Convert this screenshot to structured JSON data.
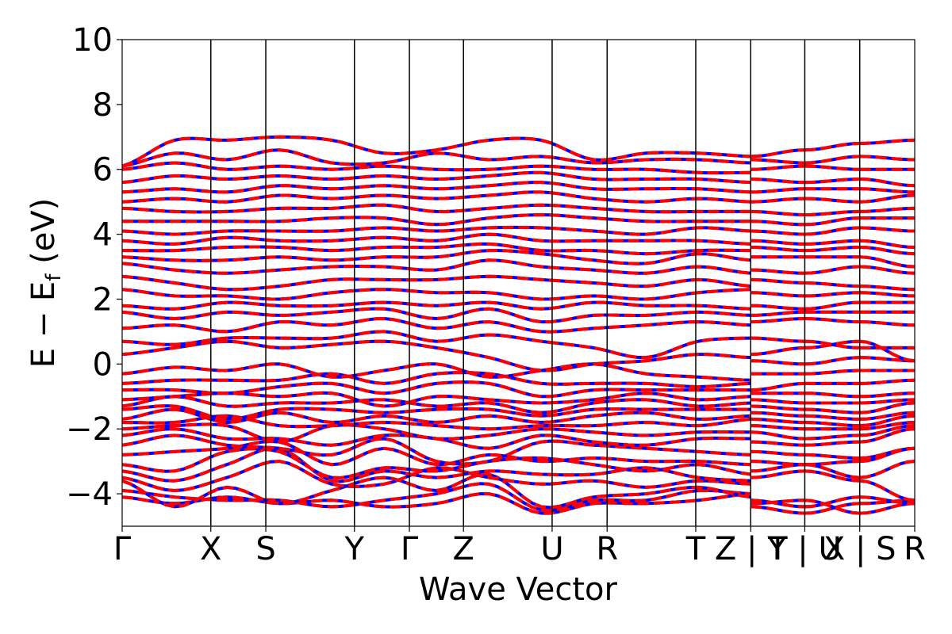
{
  "chart_data": {
    "type": "line",
    "title": "",
    "xlabel": "Wave Vector",
    "ylabel_parts": {
      "main": "E − E",
      "sub": "f",
      "unit": " (eV)"
    },
    "ylim": [
      -5,
      10
    ],
    "y_ticks": [
      -4,
      -2,
      0,
      2,
      4,
      6,
      8,
      10
    ],
    "y_tick_labels": [
      "−4",
      "−2",
      "0",
      "2",
      "4",
      "6",
      "8",
      "10"
    ],
    "k_ticks": [
      {
        "pos": 0.0,
        "label": "Γ"
      },
      {
        "pos": 1.0,
        "label": "X"
      },
      {
        "pos": 1.62,
        "label": "S"
      },
      {
        "pos": 2.62,
        "label": "Y"
      },
      {
        "pos": 3.24,
        "label": "Γ"
      },
      {
        "pos": 3.85,
        "label": "Z"
      },
      {
        "pos": 4.85,
        "label": "U"
      },
      {
        "pos": 5.47,
        "label": "R"
      },
      {
        "pos": 6.47,
        "label": "T"
      },
      {
        "pos": 7.09,
        "label": "Z | Y"
      },
      {
        "pos": 7.7,
        "label": "T | U"
      },
      {
        "pos": 8.32,
        "label": "X | S"
      },
      {
        "pos": 8.94,
        "label": "R"
      }
    ],
    "xlim": [
      0,
      8.94
    ],
    "segments": [
      {
        "start": 0.0,
        "end": 7.09,
        "samples": 72
      },
      {
        "start": 7.09,
        "end": 7.7,
        "samples": 8
      },
      {
        "start": 7.7,
        "end": 8.32,
        "samples": 8
      },
      {
        "start": 8.32,
        "end": 8.94,
        "samples": 8
      }
    ],
    "series": [
      {
        "color": "#0000ff",
        "style": "solid"
      },
      {
        "color": "#ff0000",
        "style": "dashed"
      }
    ],
    "bands": [
      {
        "s": [
          -4.1,
          -4.3,
          -4.1,
          -4.3,
          -4.2,
          -4.4,
          -4.3,
          -4.0,
          -4.6,
          -4.3,
          -4.3,
          -4.2,
          -4.0
        ],
        "b": [
          -4.4,
          -4.6,
          -4.3,
          -4.2
        ]
      },
      {
        "s": [
          -3.9,
          -4.1,
          -4.2,
          -4.2,
          -4.4,
          -4.2,
          -4.0,
          -3.7,
          -4.5,
          -4.2,
          -4.2,
          -3.9,
          -4.0
        ],
        "b": [
          -4.3,
          -4.2,
          -4.6,
          -4.3
        ]
      },
      {
        "s": [
          -3.6,
          -4.4,
          -3.8,
          -4.3,
          -3.9,
          -3.5,
          -3.9,
          -3.4,
          -4.4,
          -4.1,
          -4.0,
          -3.8,
          -4.1
        ],
        "b": [
          -4.2,
          -4.4,
          -4.1,
          -4.3
        ]
      },
      {
        "s": [
          -3.5,
          -3.9,
          -3.5,
          -3.0,
          -3.7,
          -3.7,
          -3.2,
          -3.5,
          -3.7,
          -3.6,
          -3.8,
          -3.6,
          -3.7
        ],
        "b": [
          -3.5,
          -3.3,
          -3.6,
          -4.2
        ]
      },
      {
        "s": [
          -3.3,
          -3.6,
          -3.1,
          -2.6,
          -3.6,
          -3.3,
          -3.5,
          -3.3,
          -3.4,
          -3.4,
          -3.2,
          -3.5,
          -3.6
        ],
        "b": [
          -3.3,
          -3.1,
          -3.5,
          -3.0
        ]
      },
      {
        "s": [
          -3.1,
          -3.3,
          -2.7,
          -2.7,
          -3.5,
          -3.2,
          -3.3,
          -3.0,
          -2.9,
          -3.1,
          -3.3,
          -3.1,
          -3.4
        ],
        "b": [
          -3.0,
          -3.1,
          -3.0,
          -2.6
        ]
      },
      {
        "s": [
          -2.8,
          -2.7,
          -2.6,
          -2.4,
          -3.1,
          -2.6,
          -3.1,
          -2.8,
          -3.0,
          -2.9,
          -3.0,
          -3.0,
          -3.1
        ],
        "b": [
          -2.7,
          -2.8,
          -2.9,
          -2.6
        ]
      },
      {
        "s": [
          -2.5,
          -2.2,
          -2.5,
          -2.6,
          -2.8,
          -2.3,
          -3.0,
          -3.0,
          -2.4,
          -2.5,
          -2.6,
          -2.7,
          -2.8
        ],
        "b": [
          -2.4,
          -2.5,
          -2.4,
          -2.0
        ]
      },
      {
        "s": [
          -2.2,
          -2.0,
          -2.3,
          -2.3,
          -2.5,
          -2.2,
          -2.3,
          -2.6,
          -2.2,
          -2.4,
          -2.5,
          -2.3,
          -2.3
        ],
        "b": [
          -2.1,
          -2.3,
          -2.2,
          -1.9
        ]
      },
      {
        "s": [
          -2.0,
          -1.9,
          -1.9,
          -2.4,
          -1.9,
          -2.0,
          -2.3,
          -2.2,
          -2.0,
          -2.1,
          -2.2,
          -2.1,
          -2.1
        ],
        "b": [
          -1.9,
          -2.0,
          -2.0,
          -1.8
        ]
      },
      {
        "s": [
          -1.8,
          -1.8,
          -1.6,
          -1.9,
          -1.9,
          -1.8,
          -1.9,
          -2.0,
          -1.9,
          -1.9,
          -1.8,
          -1.9,
          -1.7
        ],
        "b": [
          -1.7,
          -1.8,
          -1.9,
          -1.6
        ]
      },
      {
        "s": [
          -1.7,
          -1.4,
          -1.8,
          -1.5,
          -1.8,
          -1.6,
          -1.8,
          -1.6,
          -1.8,
          -1.6,
          -1.5,
          -1.7,
          -1.6
        ],
        "b": [
          -1.5,
          -1.6,
          -1.7,
          -1.5
        ]
      },
      {
        "s": [
          -1.4,
          -1.3,
          -1.7,
          -1.4,
          -1.4,
          -1.5,
          -1.4,
          -1.4,
          -1.6,
          -1.4,
          -1.4,
          -1.4,
          -1.4
        ],
        "b": [
          -1.3,
          -1.4,
          -1.5,
          -1.2
        ]
      },
      {
        "s": [
          -1.3,
          -1.0,
          -1.3,
          -1.2,
          -1.2,
          -1.1,
          -1.3,
          -1.2,
          -1.5,
          -1.2,
          -1.1,
          -1.3,
          -1.2
        ],
        "b": [
          -1.1,
          -1.2,
          -1.2,
          -1.1
        ]
      },
      {
        "s": [
          -1.1,
          -1.0,
          -0.9,
          -1.0,
          -0.9,
          -1.3,
          -1.0,
          -1.1,
          -1.2,
          -1.1,
          -0.9,
          -1.1,
          -1.0
        ],
        "b": [
          -0.9,
          -0.9,
          -1.0,
          -0.9
        ]
      },
      {
        "s": [
          -0.8,
          -0.8,
          -0.9,
          -0.7,
          -0.6,
          -0.9,
          -0.6,
          -0.6,
          -1.0,
          -0.8,
          -0.8,
          -0.8,
          -0.8
        ],
        "b": [
          -0.8,
          -0.6,
          -0.6,
          -0.5
        ]
      },
      {
        "s": [
          -0.6,
          -0.5,
          -0.5,
          -0.5,
          -0.3,
          -0.6,
          -0.3,
          -0.3,
          -0.6,
          -0.6,
          -0.6,
          -0.7,
          -0.6
        ],
        "b": [
          -0.3,
          -0.3,
          -0.2,
          -0.2
        ]
      },
      {
        "s": [
          -0.3,
          -0.1,
          -0.2,
          0.0,
          -0.4,
          -0.2,
          0.0,
          -0.4,
          -0.2,
          0.0,
          -0.3,
          -0.4,
          -0.5
        ],
        "b": [
          0.1,
          0.0,
          0.2,
          0.1
        ]
      },
      {
        "s": [
          0.3,
          0.5,
          0.7,
          0.5,
          0.6,
          0.7,
          0.5,
          0.2,
          -0.2,
          0.0,
          0.1,
          0.3,
          0.2
        ],
        "b": [
          0.3,
          0.5,
          0.7,
          0.1
        ]
      },
      {
        "s": [
          0.7,
          0.6,
          0.8,
          0.8,
          0.8,
          1.0,
          0.7,
          0.9,
          0.7,
          0.5,
          0.2,
          0.7,
          0.8
        ],
        "b": [
          0.8,
          0.7,
          0.5,
          0.5
        ]
      },
      {
        "s": [
          1.1,
          1.2,
          1.0,
          1.3,
          1.2,
          1.4,
          1.1,
          1.3,
          1.0,
          1.1,
          1.2,
          1.3,
          1.2
        ],
        "b": [
          1.3,
          1.4,
          1.3,
          1.2
        ]
      },
      {
        "s": [
          1.6,
          1.4,
          1.6,
          1.5,
          1.6,
          1.7,
          1.4,
          1.7,
          1.3,
          1.5,
          1.5,
          1.6,
          1.5
        ],
        "b": [
          1.5,
          1.6,
          1.6,
          1.6
        ]
      },
      {
        "s": [
          1.8,
          1.7,
          1.9,
          1.8,
          1.8,
          1.9,
          1.8,
          1.9,
          1.7,
          1.9,
          1.8,
          1.8,
          1.7
        ],
        "b": [
          1.8,
          1.7,
          1.9,
          1.9
        ]
      },
      {
        "s": [
          2.3,
          2.1,
          2.1,
          2.0,
          2.2,
          2.3,
          2.2,
          2.2,
          2.0,
          2.1,
          2.0,
          2.2,
          2.3
        ],
        "b": [
          2.2,
          2.1,
          2.2,
          2.1
        ]
      },
      {
        "s": [
          2.7,
          2.5,
          2.3,
          2.4,
          2.6,
          2.6,
          2.6,
          2.7,
          2.6,
          2.5,
          2.4,
          2.6,
          2.4
        ],
        "b": [
          2.6,
          2.5,
          2.4,
          2.3
        ]
      },
      {
        "s": [
          3.1,
          2.9,
          2.8,
          2.9,
          3.0,
          3.0,
          2.9,
          3.2,
          3.0,
          2.9,
          2.8,
          3.0,
          2.8
        ],
        "b": [
          2.9,
          2.8,
          3.0,
          2.8
        ]
      },
      {
        "s": [
          3.3,
          3.2,
          3.2,
          3.3,
          3.2,
          3.3,
          3.3,
          3.5,
          3.4,
          3.2,
          3.1,
          3.4,
          3.2
        ],
        "b": [
          3.3,
          3.3,
          3.3,
          3.0
        ]
      },
      {
        "s": [
          3.5,
          3.5,
          3.6,
          3.6,
          3.5,
          3.6,
          3.6,
          3.7,
          3.5,
          3.5,
          3.4,
          3.5,
          3.5
        ],
        "b": [
          3.6,
          3.5,
          3.6,
          3.4
        ]
      },
      {
        "s": [
          3.8,
          3.7,
          3.9,
          3.8,
          3.8,
          3.9,
          3.8,
          4.0,
          3.8,
          3.8,
          3.8,
          3.8,
          3.7
        ],
        "b": [
          3.8,
          3.7,
          3.8,
          3.6
        ]
      },
      {
        "s": [
          4.1,
          4.0,
          4.1,
          4.1,
          4.1,
          4.2,
          4.1,
          4.2,
          4.2,
          4.1,
          4.0,
          4.2,
          4.1
        ],
        "b": [
          4.1,
          4.0,
          4.2,
          4.1
        ]
      },
      {
        "s": [
          4.4,
          4.4,
          4.4,
          4.4,
          4.5,
          4.5,
          4.3,
          4.5,
          4.6,
          4.5,
          4.4,
          4.4,
          4.4
        ],
        "b": [
          4.4,
          4.3,
          4.5,
          4.5
        ]
      },
      {
        "s": [
          4.8,
          4.7,
          4.7,
          4.8,
          4.8,
          4.9,
          4.7,
          4.8,
          4.9,
          4.8,
          4.7,
          4.7,
          4.7
        ],
        "b": [
          4.7,
          4.6,
          4.7,
          4.8
        ]
      },
      {
        "s": [
          5.0,
          5.1,
          5.0,
          5.2,
          5.1,
          5.2,
          5.1,
          5.2,
          5.3,
          5.1,
          5.0,
          5.1,
          5.0
        ],
        "b": [
          5.0,
          5.1,
          5.0,
          5.2
        ]
      },
      {
        "s": [
          5.3,
          5.4,
          5.3,
          5.5,
          5.4,
          5.5,
          5.4,
          5.5,
          5.6,
          5.4,
          5.4,
          5.4,
          5.3
        ],
        "b": [
          5.3,
          5.4,
          5.4,
          5.3
        ]
      },
      {
        "s": [
          5.6,
          5.8,
          5.7,
          5.8,
          5.7,
          5.8,
          5.7,
          5.8,
          5.9,
          5.7,
          5.7,
          5.7,
          5.6
        ],
        "b": [
          5.7,
          5.6,
          5.7,
          5.5
        ]
      },
      {
        "s": [
          6.0,
          6.2,
          6.0,
          6.1,
          6.0,
          6.1,
          6.0,
          6.0,
          6.1,
          6.0,
          6.0,
          5.9,
          5.9
        ],
        "b": [
          6.0,
          6.1,
          6.0,
          6.0
        ]
      },
      {
        "s": [
          6.1,
          6.5,
          6.3,
          6.6,
          6.2,
          6.2,
          6.5,
          6.3,
          6.4,
          6.2,
          6.3,
          6.3,
          6.2
        ],
        "b": [
          6.3,
          6.2,
          6.4,
          6.3
        ]
      },
      {
        "s": [
          6.1,
          6.9,
          6.9,
          7.0,
          6.9,
          6.5,
          6.6,
          6.9,
          6.9,
          6.3,
          6.5,
          6.5,
          6.4
        ],
        "b": [
          6.4,
          6.6,
          6.8,
          6.9
        ]
      }
    ]
  }
}
